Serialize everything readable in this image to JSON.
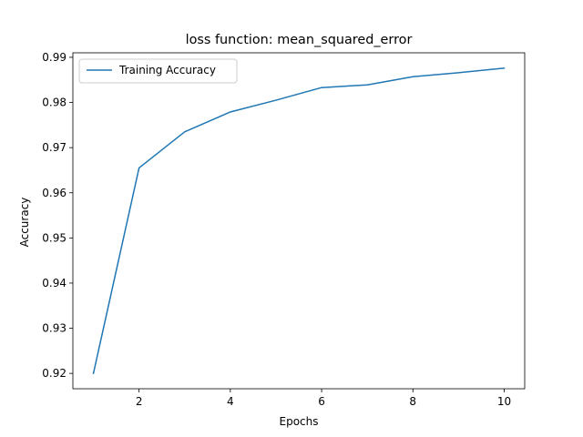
{
  "chart_data": {
    "type": "line",
    "title": "loss function: mean_squared_error",
    "xlabel": "Epochs",
    "ylabel": "Accuracy",
    "xlim": [
      0.55,
      10.45
    ],
    "ylim": [
      0.9166,
      0.991
    ],
    "xticks": [
      2,
      4,
      6,
      8,
      10
    ],
    "yticks": [
      0.92,
      0.93,
      0.94,
      0.95,
      0.96,
      0.97,
      0.98,
      0.99
    ],
    "xtick_labels": [
      "2",
      "4",
      "6",
      "8",
      "10"
    ],
    "ytick_labels": [
      "0.92",
      "0.93",
      "0.94",
      "0.95",
      "0.96",
      "0.97",
      "0.98",
      "0.99"
    ],
    "grid": false,
    "legend_position": "upper-left",
    "series": [
      {
        "name": "Training Accuracy",
        "color": "#1f77b4",
        "x": [
          1,
          2,
          3,
          4,
          5,
          6,
          7,
          8,
          9,
          10
        ],
        "y": [
          0.92,
          0.9655,
          0.9735,
          0.9779,
          0.9805,
          0.9833,
          0.9839,
          0.9857,
          0.9866,
          0.9876
        ]
      }
    ]
  }
}
